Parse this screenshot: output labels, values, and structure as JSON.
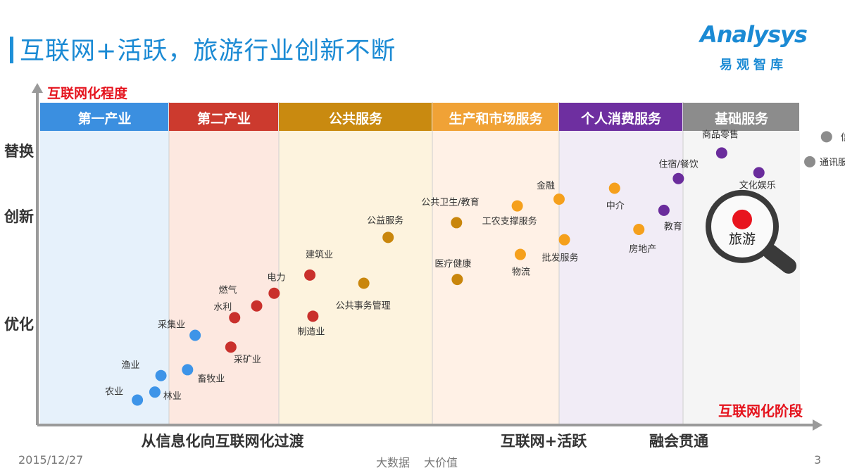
{
  "header": {
    "title": "互联网+活跃，旅游行业创新不断"
  },
  "logo": {
    "word": "Analysys",
    "sub": "易观智库"
  },
  "footer": {
    "date": "2015/12/27",
    "center_1": "大数据",
    "center_2": "大价值",
    "page": "3"
  },
  "chart_data": {
    "type": "scatter",
    "title": "互联网+活跃，旅游行业创新不断",
    "ylabel": "互联网化程度",
    "xlabel": "互联网化阶段",
    "y_levels": [
      "替换",
      "创新",
      "优化"
    ],
    "x_stages": [
      "从信息化向互联网化过渡",
      "互联网+活跃",
      "融会贯通"
    ],
    "categories": [
      {
        "name": "第一产业",
        "header_color": "#3b8fe0",
        "band_color": "#e6f1fb",
        "dot_color": "#3d94e8"
      },
      {
        "name": "第二产业",
        "header_color": "#cc3a2e",
        "band_color": "#fde8e0",
        "dot_color": "#c9302c"
      },
      {
        "name": "公共服务",
        "header_color": "#c98a10",
        "band_color": "#fdf3de",
        "dot_color": "#c9860c"
      },
      {
        "name": "生产和市场服务",
        "header_color": "#f0a236",
        "band_color": "#fff1e6",
        "dot_color": "#f5a01c"
      },
      {
        "name": "个人消费服务",
        "header_color": "#6e2fa0",
        "band_color": "#f1ecf6",
        "dot_color": "#6a2c9c"
      },
      {
        "name": "基础服务",
        "header_color": "#8c8c8c",
        "band_color": "#f5f5f5",
        "dot_color": "#8c8c8c"
      }
    ],
    "points": [
      {
        "label": "农业",
        "category": 0,
        "x": 0.128,
        "y": 0.085
      },
      {
        "label": "林业",
        "category": 0,
        "x": 0.151,
        "y": 0.112
      },
      {
        "label": "渔业",
        "category": 0,
        "x": 0.159,
        "y": 0.168
      },
      {
        "label": "畜牧业",
        "category": 0,
        "x": 0.194,
        "y": 0.188
      },
      {
        "label": "采集业",
        "category": 0,
        "x": 0.204,
        "y": 0.305
      },
      {
        "label": "采矿业",
        "category": 1,
        "x": 0.251,
        "y": 0.265
      },
      {
        "label": "水利",
        "category": 1,
        "x": 0.256,
        "y": 0.365
      },
      {
        "label": "燃气",
        "category": 1,
        "x": 0.285,
        "y": 0.405
      },
      {
        "label": "电力",
        "category": 1,
        "x": 0.308,
        "y": 0.448
      },
      {
        "label": "建筑业",
        "category": 1,
        "x": 0.355,
        "y": 0.51
      },
      {
        "label": "制造业",
        "category": 1,
        "x": 0.359,
        "y": 0.37
      },
      {
        "label": "公共事务管理",
        "category": 2,
        "x": 0.426,
        "y": 0.482
      },
      {
        "label": "公益服务",
        "category": 2,
        "x": 0.458,
        "y": 0.638
      },
      {
        "label": "公共卫生/教育",
        "category": 2,
        "x": 0.548,
        "y": 0.688
      },
      {
        "label": "医疗健康",
        "category": 2,
        "x": 0.549,
        "y": 0.495
      },
      {
        "label": "工农支撑服务",
        "category": 3,
        "x": 0.628,
        "y": 0.745
      },
      {
        "label": "物流",
        "category": 3,
        "x": 0.632,
        "y": 0.58
      },
      {
        "label": "金融",
        "category": 3,
        "x": 0.683,
        "y": 0.768
      },
      {
        "label": "批发服务",
        "category": 3,
        "x": 0.69,
        "y": 0.63
      },
      {
        "label": "中介",
        "category": 3,
        "x": 0.756,
        "y": 0.805
      },
      {
        "label": "房地产",
        "category": 3,
        "x": 0.788,
        "y": 0.665
      },
      {
        "label": "教育",
        "category": 4,
        "x": 0.821,
        "y": 0.73
      },
      {
        "label": "住宿/餐饮",
        "category": 4,
        "x": 0.84,
        "y": 0.838
      },
      {
        "label": "商品零售",
        "category": 4,
        "x": 0.897,
        "y": 0.925
      },
      {
        "label": "文化娱乐",
        "category": 4,
        "x": 0.946,
        "y": 0.858
      },
      {
        "label": "通讯服务",
        "category": 5,
        "x": 1.013,
        "y": 0.895
      },
      {
        "label": "信息服务",
        "category": 5,
        "x": 1.035,
        "y": 0.98
      }
    ],
    "highlight": {
      "label": "旅游",
      "x": 0.924,
      "y": 0.675,
      "color": "#e8141e"
    }
  }
}
